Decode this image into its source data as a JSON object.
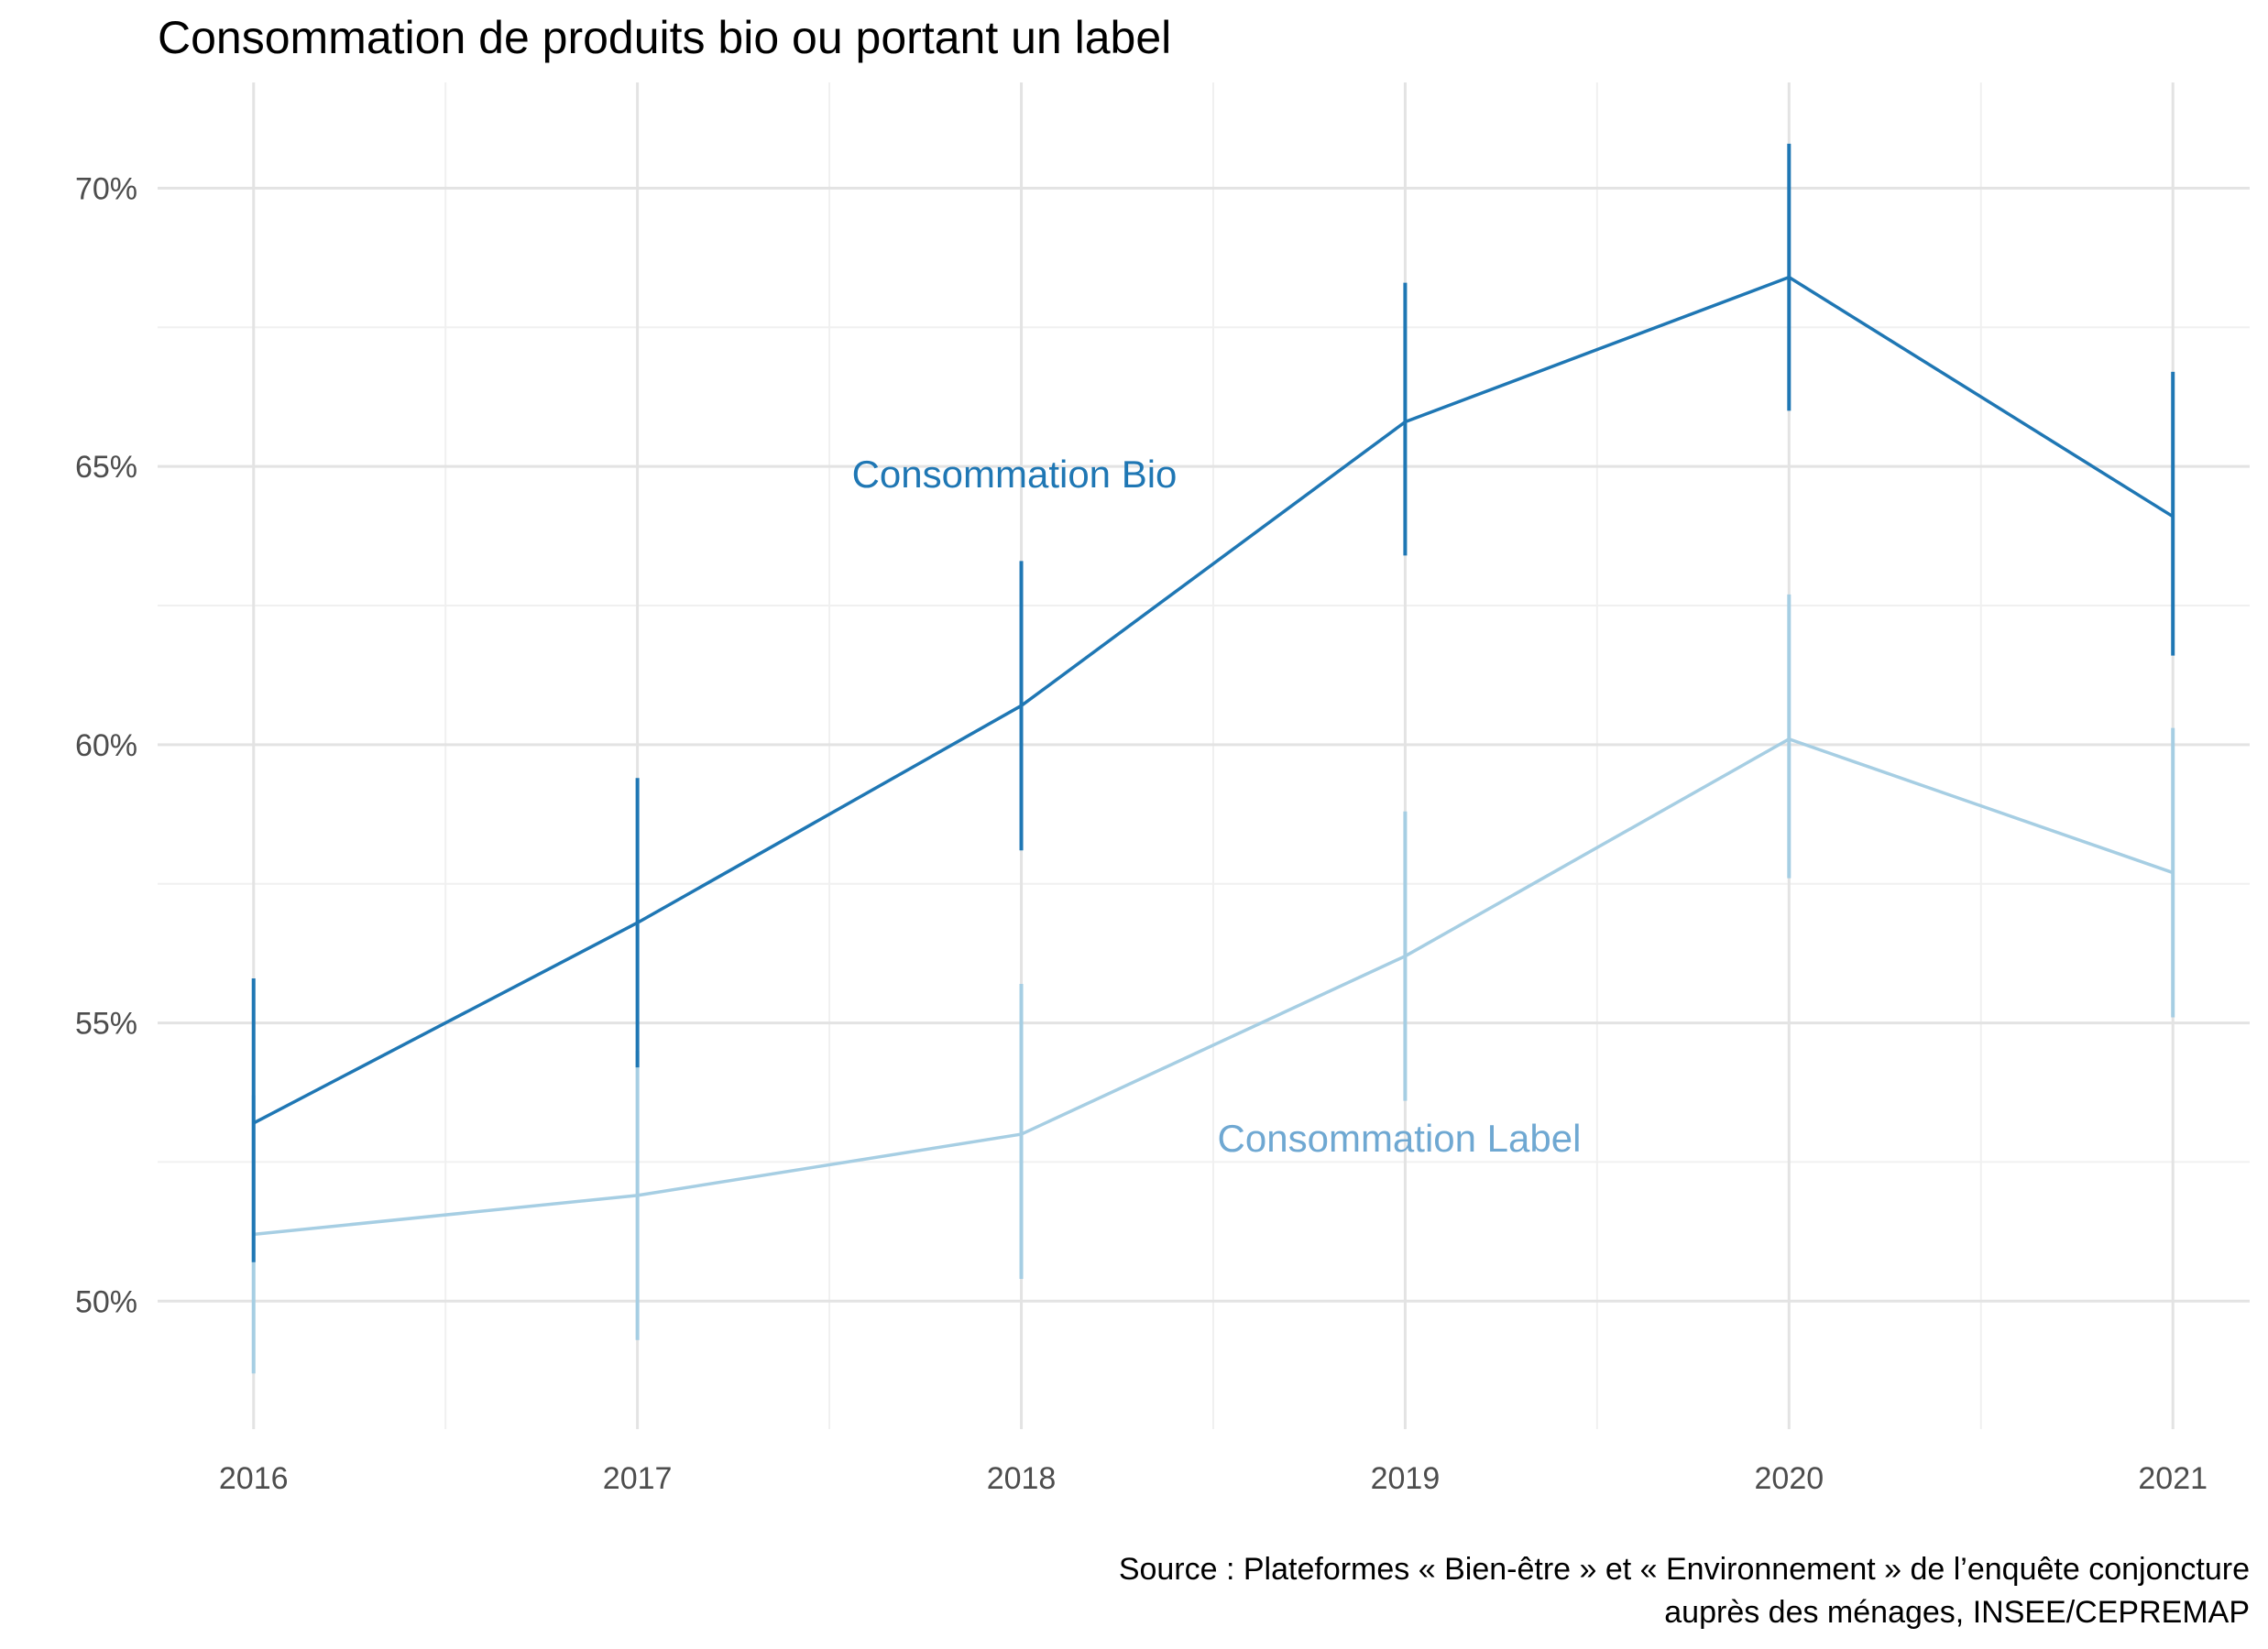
{
  "chart_data": {
    "type": "line",
    "title": "Consommation de produits bio ou portant un label",
    "xlabel": "",
    "ylabel": "",
    "x": [
      "2016",
      "2017",
      "2018",
      "2019",
      "2020",
      "2021"
    ],
    "yticks": [
      "50%",
      "55%",
      "60%",
      "65%",
      "70%"
    ],
    "ylim": [
      47.7,
      71.9
    ],
    "grid": true,
    "error_bars": true,
    "series": [
      {
        "name": "Consommation Bio",
        "color": "#1f77b4",
        "values": [
          53.2,
          56.8,
          60.7,
          65.8,
          68.4,
          64.1
        ],
        "lower": [
          50.7,
          54.2,
          58.1,
          63.4,
          66.0,
          61.6
        ],
        "upper": [
          55.8,
          59.4,
          63.3,
          68.3,
          70.8,
          66.7
        ]
      },
      {
        "name": "Consommation Label",
        "color": "#a6cee3",
        "label_color": "#6fa8d2",
        "values": [
          51.2,
          51.9,
          53.0,
          56.2,
          60.1,
          57.7
        ],
        "lower": [
          48.7,
          49.3,
          50.4,
          53.6,
          57.6,
          55.1
        ],
        "upper": [
          53.7,
          54.5,
          55.7,
          58.8,
          62.7,
          60.3
        ]
      }
    ]
  },
  "source": {
    "line1": "Source : Plateformes « Bien-être » et « Environnement » de l’enquête conjoncture",
    "line2": "auprès des ménages, INSEE/CEPREMAP"
  }
}
